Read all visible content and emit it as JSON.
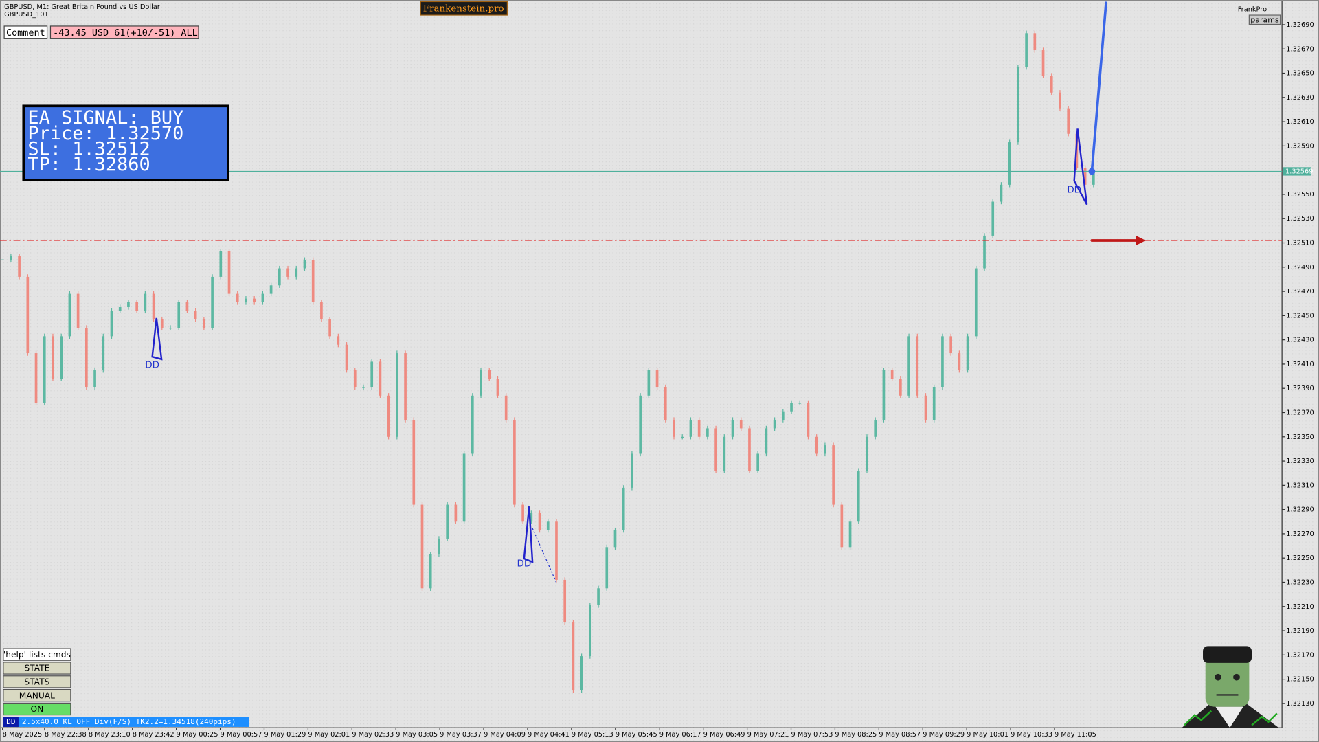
{
  "header": {
    "symbol": "GBPUSD, M1:  Great Britain Pound vs US Dollar",
    "template": "GBPUSD_101",
    "brand": "Frankenstein.pro",
    "user": "FrankPro",
    "params": "params"
  },
  "comment": {
    "label": "Comment",
    "text": "-43.45 USD 61(+10/-51) ALL"
  },
  "signal": {
    "lines": [
      "EA SIGNAL: BUY",
      "Price: 1.32570",
      "SL:     1.32512",
      "TP:     1.32860"
    ]
  },
  "buttons": [
    "'help' lists cmds",
    "STATE",
    "STATS",
    "MANUAL",
    "ON"
  ],
  "status": {
    "tag": "DD",
    "text": "2.5x40.0 KL_OFF Div(F/S) TK2.2=1.34518(240pips)"
  },
  "chart_data": {
    "type": "candlestick",
    "up_color": "#5cb8a2",
    "down_color": "#ef8a80",
    "values": [
      1.32496,
      1.32499,
      1.32482,
      1.32419,
      1.32378,
      1.32433,
      1.32398,
      1.32433,
      1.32468,
      1.3244,
      1.32391,
      1.32405,
      1.32433,
      1.32454,
      1.32457,
      1.32461,
      1.32454,
      1.32468,
      1.32447,
      1.3244,
      1.3244,
      1.32461,
      1.32454,
      1.32447,
      1.3244,
      1.32482,
      1.32503,
      1.32468,
      1.32461,
      1.32464,
      1.32461,
      1.32468,
      1.32475,
      1.32489,
      1.32482,
      1.32489,
      1.32496,
      1.32461,
      1.32447,
      1.32433,
      1.32426,
      1.32405,
      1.32391,
      1.32391,
      1.32412,
      1.32384,
      1.3235,
      1.32419,
      1.32364,
      1.32294,
      1.32225,
      1.32253,
      1.32266,
      1.32294,
      1.3228,
      1.32336,
      1.32384,
      1.32405,
      1.32398,
      1.32384,
      1.32364,
      1.32294,
      1.3228,
      1.32287,
      1.32273,
      1.3228,
      1.32232,
      1.32197,
      1.32141,
      1.32169,
      1.32211,
      1.32225,
      1.32259,
      1.32273,
      1.32308,
      1.32336,
      1.32384,
      1.32405,
      1.32391,
      1.32364,
      1.3235,
      1.3235,
      1.32364,
      1.3235,
      1.32357,
      1.32322,
      1.3235,
      1.32364,
      1.32357,
      1.32322,
      1.32336,
      1.32357,
      1.32364,
      1.32371,
      1.32378,
      1.32378,
      1.3235,
      1.32336,
      1.32343,
      1.32294,
      1.32259,
      1.3228,
      1.32322,
      1.3235,
      1.32364,
      1.32405,
      1.32398,
      1.32384,
      1.32433,
      1.32384,
      1.32364,
      1.32391,
      1.32433,
      1.32419,
      1.32405,
      1.32433,
      1.32489,
      1.32516,
      1.32544,
      1.32558,
      1.32593,
      1.32655,
      1.32683,
      1.32669,
      1.32648,
      1.32634,
      1.32621,
      1.326,
      1.32572,
      1.32558,
      1.32569
    ],
    "ylim": [
      1.3211,
      1.32709
    ],
    "yticks": [
      {
        "value": 1.3269,
        "label": "1.32690"
      },
      {
        "value": 1.3267,
        "label": "1.32670"
      },
      {
        "value": 1.3265,
        "label": "1.32650"
      },
      {
        "value": 1.3263,
        "label": "1.32630"
      },
      {
        "value": 1.3261,
        "label": "1.32610"
      },
      {
        "value": 1.3259,
        "label": "1.32590"
      },
      {
        "value": 1.3255,
        "label": "1.32550"
      },
      {
        "value": 1.3253,
        "label": "1.32530"
      },
      {
        "value": 1.3251,
        "label": "1.32510"
      },
      {
        "value": 1.3249,
        "label": "1.32490"
      },
      {
        "value": 1.3247,
        "label": "1.32470"
      },
      {
        "value": 1.3245,
        "label": "1.32450"
      },
      {
        "value": 1.3243,
        "label": "1.32430"
      },
      {
        "value": 1.3241,
        "label": "1.32410"
      },
      {
        "value": 1.3239,
        "label": "1.32390"
      },
      {
        "value": 1.3237,
        "label": "1.32370"
      },
      {
        "value": 1.3235,
        "label": "1.32350"
      },
      {
        "value": 1.3233,
        "label": "1.32330"
      },
      {
        "value": 1.3231,
        "label": "1.32310"
      },
      {
        "value": 1.3229,
        "label": "1.32290"
      },
      {
        "value": 1.3227,
        "label": "1.32270"
      },
      {
        "value": 1.3225,
        "label": "1.32250"
      },
      {
        "value": 1.3223,
        "label": "1.32230"
      },
      {
        "value": 1.3221,
        "label": "1.32210"
      },
      {
        "value": 1.3219,
        "label": "1.32190"
      },
      {
        "value": 1.3217,
        "label": "1.32170"
      },
      {
        "value": 1.3215,
        "label": "1.32150"
      },
      {
        "value": 1.3213,
        "label": "1.32130"
      }
    ],
    "x_labels": [
      "8 May 2025",
      "8 May 22:38",
      "8 May 23:10",
      "8 May 23:42",
      "9 May 00:25",
      "9 May 00:57",
      "9 May 01:29",
      "9 May 02:01",
      "9 May 02:33",
      "9 May 03:05",
      "9 May 03:37",
      "9 May 04:09",
      "9 May 04:41",
      "9 May 05:13",
      "9 May 05:45",
      "9 May 06:17",
      "9 May 06:49",
      "9 May 07:21",
      "9 May 07:53",
      "9 May 08:25",
      "9 May 08:57",
      "9 May 09:29",
      "9 May 10:01",
      "9 May 10:33",
      "9 May 11:05"
    ],
    "price_line": {
      "value": 1.32569,
      "label": "1.32569"
    },
    "sl_line": 1.32512,
    "annotations": [
      "DD",
      "DD",
      "DD"
    ]
  }
}
